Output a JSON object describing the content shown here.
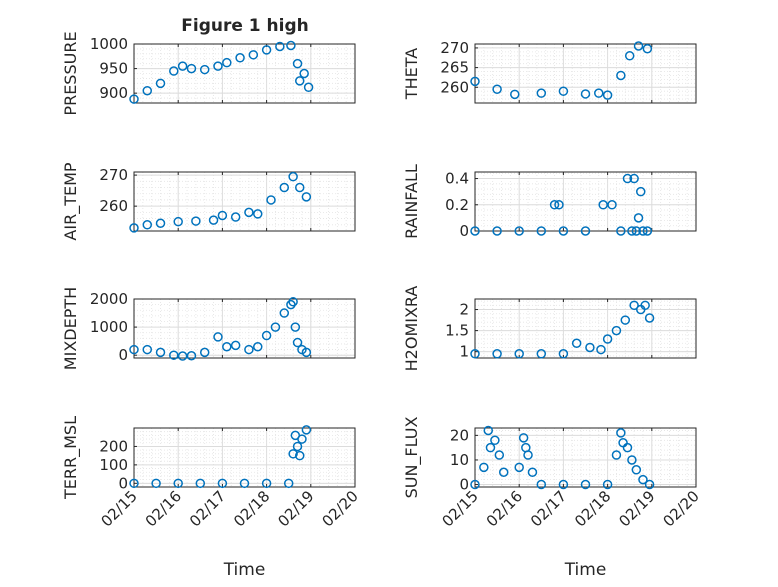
{
  "figure": {
    "title": "Figure 1 high"
  },
  "chart_data": [
    {
      "type": "scatter",
      "ylabel": "PRESSURE",
      "ylim": [
        880,
        1000
      ],
      "yticks": [
        900,
        950,
        1000
      ],
      "xlim": [
        0,
        5
      ],
      "x": [
        0,
        0.3,
        0.6,
        0.9,
        1.1,
        1.3,
        1.6,
        1.9,
        2.1,
        2.4,
        2.7,
        3.0,
        3.3,
        3.55,
        3.7,
        3.75,
        3.85,
        3.95
      ],
      "y": [
        888,
        905,
        920,
        945,
        955,
        950,
        948,
        955,
        962,
        972,
        978,
        988,
        995,
        997,
        960,
        925,
        940,
        912
      ],
      "grid": true
    },
    {
      "type": "scatter",
      "ylabel": "THETA",
      "ylim": [
        256,
        271
      ],
      "yticks": [
        260,
        265,
        270
      ],
      "xlim": [
        0,
        5
      ],
      "x": [
        0,
        0.5,
        0.9,
        1.5,
        2.0,
        2.5,
        2.8,
        3.0,
        3.3,
        3.5,
        3.7,
        3.9
      ],
      "y": [
        261.5,
        259.5,
        258.2,
        258.5,
        259.0,
        258.3,
        258.5,
        258.0,
        263,
        268,
        270.5,
        269.8
      ],
      "grid": true
    },
    {
      "type": "scatter",
      "ylabel": "AIR_TEMP",
      "ylim": [
        252,
        271
      ],
      "yticks": [
        260,
        270
      ],
      "xlim": [
        0,
        5
      ],
      "x": [
        0,
        0.3,
        0.6,
        1.0,
        1.4,
        1.8,
        2.0,
        2.3,
        2.6,
        2.8,
        3.1,
        3.4,
        3.6,
        3.75,
        3.9
      ],
      "y": [
        253,
        254,
        254.5,
        255,
        255.2,
        255.5,
        257,
        256.5,
        258,
        257.5,
        262,
        266,
        269.5,
        266,
        263
      ],
      "grid": true
    },
    {
      "type": "scatter",
      "ylabel": "RAINFALL",
      "ylim": [
        0,
        0.45
      ],
      "yticks": [
        0,
        0.2,
        0.4
      ],
      "xlim": [
        0,
        5
      ],
      "x": [
        0,
        0.5,
        1.0,
        1.5,
        1.8,
        1.9,
        2.0,
        2.5,
        2.9,
        3.1,
        3.3,
        3.45,
        3.55,
        3.6,
        3.65,
        3.7,
        3.75,
        3.8,
        3.9
      ],
      "y": [
        0,
        0,
        0,
        0,
        0.2,
        0.2,
        0,
        0,
        0.2,
        0.2,
        0,
        0.4,
        0,
        0.4,
        0,
        0.1,
        0.3,
        0,
        0
      ],
      "grid": true
    },
    {
      "type": "scatter",
      "ylabel": "MIXDEPTH",
      "ylim": [
        -100,
        2000
      ],
      "yticks": [
        0,
        1000,
        2000
      ],
      "xlim": [
        0,
        5
      ],
      "x": [
        0,
        0.3,
        0.6,
        0.9,
        1.1,
        1.3,
        1.6,
        1.9,
        2.1,
        2.3,
        2.6,
        2.8,
        3.0,
        3.2,
        3.4,
        3.55,
        3.6,
        3.65,
        3.7,
        3.8,
        3.9
      ],
      "y": [
        200,
        200,
        100,
        0,
        -30,
        -20,
        100,
        650,
        300,
        350,
        200,
        300,
        700,
        1000,
        1500,
        1800,
        1900,
        1000,
        450,
        200,
        100
      ],
      "grid": true
    },
    {
      "type": "scatter",
      "ylabel": "H2OMIXRA",
      "ylim": [
        0.85,
        2.25
      ],
      "yticks": [
        1,
        1.5,
        2
      ],
      "xlim": [
        0,
        5
      ],
      "x": [
        0,
        0.5,
        1.0,
        1.5,
        2.0,
        2.3,
        2.6,
        2.85,
        3.0,
        3.2,
        3.4,
        3.6,
        3.75,
        3.85,
        3.95
      ],
      "y": [
        0.95,
        0.95,
        0.95,
        0.95,
        0.95,
        1.2,
        1.1,
        1.05,
        1.3,
        1.5,
        1.75,
        2.1,
        2.0,
        2.1,
        1.8
      ],
      "grid": true
    },
    {
      "type": "scatter",
      "ylabel": "TERR_MSL",
      "ylim": [
        -20,
        300
      ],
      "yticks": [
        0,
        100,
        200
      ],
      "xlim": [
        0,
        5
      ],
      "x": [
        0,
        0.5,
        1.0,
        1.5,
        2.0,
        2.5,
        3.0,
        3.5,
        3.6,
        3.65,
        3.7,
        3.75,
        3.8,
        3.9
      ],
      "y": [
        0,
        0,
        0,
        0,
        0,
        0,
        0,
        0,
        160,
        260,
        200,
        150,
        240,
        290
      ],
      "grid": true
    },
    {
      "type": "scatter",
      "ylabel": "SUN_FLUX",
      "ylim": [
        -1,
        23
      ],
      "yticks": [
        0,
        10,
        20
      ],
      "xlim": [
        0,
        5
      ],
      "x": [
        0,
        0.2,
        0.3,
        0.35,
        0.45,
        0.55,
        0.65,
        1.0,
        1.1,
        1.15,
        1.2,
        1.3,
        1.5,
        2.0,
        2.5,
        3.0,
        3.2,
        3.3,
        3.35,
        3.45,
        3.55,
        3.65,
        3.8,
        3.95
      ],
      "y": [
        0,
        7,
        22,
        15,
        18,
        12,
        5,
        7,
        19,
        15,
        12,
        5,
        0,
        0,
        0,
        0,
        12,
        21,
        17,
        15,
        10,
        6,
        2,
        0
      ],
      "grid": true
    }
  ],
  "x_ticks": [
    "02/15",
    "02/16",
    "02/17",
    "02/18",
    "02/19",
    "02/20"
  ],
  "x_label": "Time"
}
